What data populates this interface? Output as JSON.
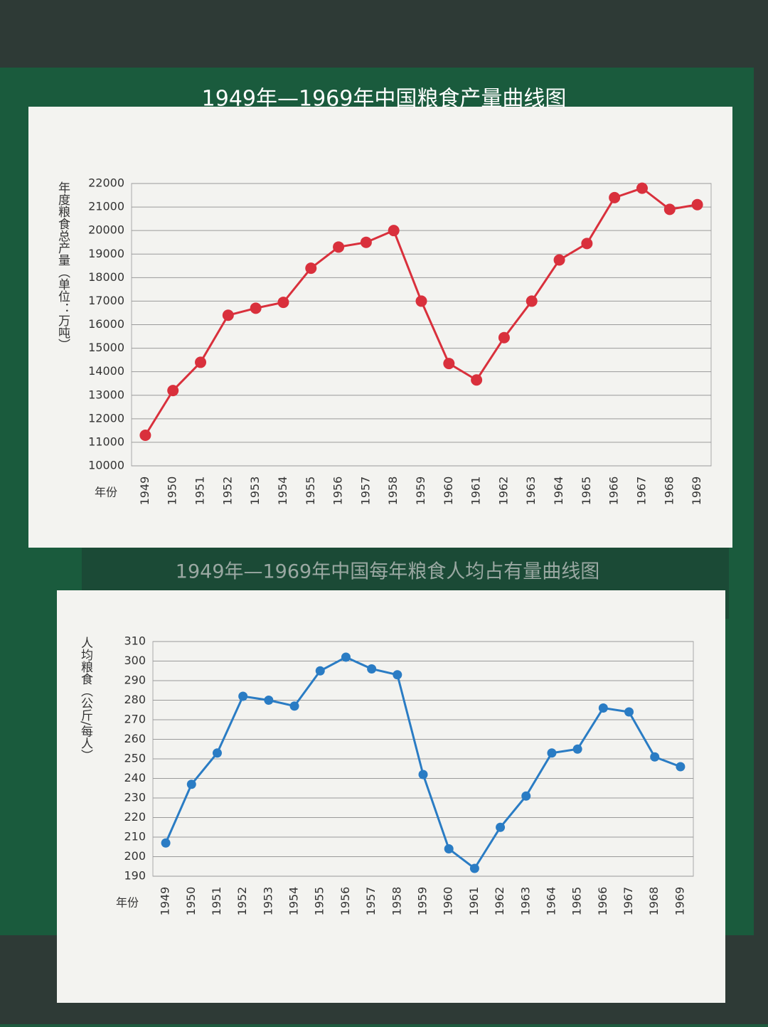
{
  "chart_data": [
    {
      "type": "line",
      "title": "1949年—1969年中国粮食产量曲线图",
      "y_label": "年度粮食总产量（单位：万吨）",
      "x_label": "年份",
      "categories": [
        "1949",
        "1950",
        "1951",
        "1952",
        "1953",
        "1954",
        "1955",
        "1956",
        "1957",
        "1958",
        "1959",
        "1960",
        "1961",
        "1962",
        "1963",
        "1964",
        "1965",
        "1966",
        "1967",
        "1968",
        "1969"
      ],
      "series": [
        {
          "color": "#d9303c",
          "values": [
            11300,
            13200,
            14400,
            16400,
            16700,
            16950,
            18400,
            19300,
            19500,
            20000,
            17000,
            14350,
            13650,
            15450,
            17000,
            18750,
            19450,
            21400,
            21800,
            20900,
            21100
          ]
        }
      ],
      "ylim": [
        10000,
        22000
      ],
      "yticks": [
        10000,
        11000,
        12000,
        13000,
        14000,
        15000,
        16000,
        17000,
        18000,
        19000,
        20000,
        21000,
        22000
      ],
      "grid": true
    },
    {
      "type": "line",
      "title": "1949年—1969年中国每年粮食人均占有量曲线图",
      "y_label": "人均粮食（公斤/每人）",
      "x_label": "年份",
      "categories": [
        "1949",
        "1950",
        "1951",
        "1952",
        "1953",
        "1954",
        "1955",
        "1956",
        "1957",
        "1958",
        "1959",
        "1960",
        "1961",
        "1962",
        "1963",
        "1964",
        "1965",
        "1966",
        "1967",
        "1968",
        "1969"
      ],
      "series": [
        {
          "color": "#2a7cc4",
          "values": [
            207,
            237,
            253,
            282,
            280,
            277,
            295,
            302,
            296,
            293,
            242,
            204,
            194,
            215,
            231,
            253,
            255,
            276,
            274,
            251,
            246
          ]
        }
      ],
      "ylim": [
        190,
        310
      ],
      "yticks": [
        190,
        200,
        210,
        220,
        230,
        240,
        250,
        260,
        270,
        280,
        290,
        300,
        310
      ],
      "grid": true
    }
  ]
}
